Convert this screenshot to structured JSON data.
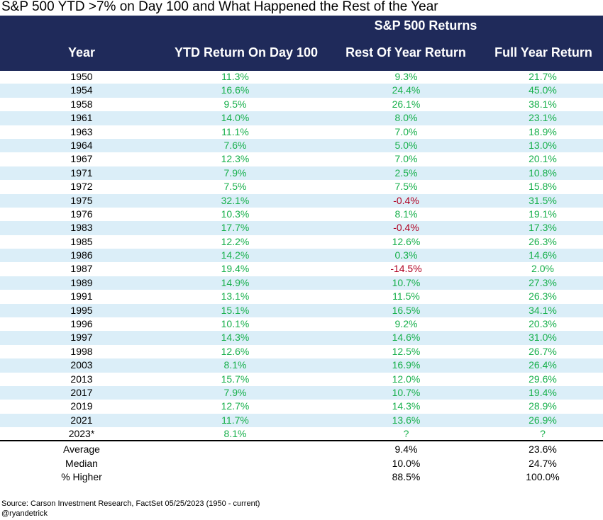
{
  "title": "S&P 500 YTD >7% on Day 100 and What Happened the Rest of the Year",
  "group_header": "S&P 500 Returns",
  "columns": [
    "Year",
    "YTD Return On Day 100",
    "Rest Of Year Return",
    "Full Year Return"
  ],
  "colors": {
    "header_bg": "#1f2a5a",
    "positive": "#18b04c",
    "negative": "#b00020",
    "alt_row": "#dbeef8"
  },
  "chart_data": {
    "type": "table",
    "title": "S&P 500 YTD >7% on Day 100 and What Happened the Rest of the Year",
    "columns": [
      "Year",
      "YTD Return On Day 100",
      "Rest Of Year Return",
      "Full Year Return"
    ],
    "rows": [
      [
        "1950",
        "11.3%",
        "9.3%",
        "21.7%"
      ],
      [
        "1954",
        "16.6%",
        "24.4%",
        "45.0%"
      ],
      [
        "1958",
        "9.5%",
        "26.1%",
        "38.1%"
      ],
      [
        "1961",
        "14.0%",
        "8.0%",
        "23.1%"
      ],
      [
        "1963",
        "11.1%",
        "7.0%",
        "18.9%"
      ],
      [
        "1964",
        "7.6%",
        "5.0%",
        "13.0%"
      ],
      [
        "1967",
        "12.3%",
        "7.0%",
        "20.1%"
      ],
      [
        "1971",
        "7.9%",
        "2.5%",
        "10.8%"
      ],
      [
        "1972",
        "7.5%",
        "7.5%",
        "15.8%"
      ],
      [
        "1975",
        "32.1%",
        "-0.4%",
        "31.5%"
      ],
      [
        "1976",
        "10.3%",
        "8.1%",
        "19.1%"
      ],
      [
        "1983",
        "17.7%",
        "-0.4%",
        "17.3%"
      ],
      [
        "1985",
        "12.2%",
        "12.6%",
        "26.3%"
      ],
      [
        "1986",
        "14.2%",
        "0.3%",
        "14.6%"
      ],
      [
        "1987",
        "19.4%",
        "-14.5%",
        "2.0%"
      ],
      [
        "1989",
        "14.9%",
        "10.7%",
        "27.3%"
      ],
      [
        "1991",
        "13.1%",
        "11.5%",
        "26.3%"
      ],
      [
        "1995",
        "15.1%",
        "16.5%",
        "34.1%"
      ],
      [
        "1996",
        "10.1%",
        "9.2%",
        "20.3%"
      ],
      [
        "1997",
        "14.3%",
        "14.6%",
        "31.0%"
      ],
      [
        "1998",
        "12.6%",
        "12.5%",
        "26.7%"
      ],
      [
        "2003",
        "8.1%",
        "16.9%",
        "26.4%"
      ],
      [
        "2013",
        "15.7%",
        "12.0%",
        "29.6%"
      ],
      [
        "2017",
        "7.9%",
        "10.7%",
        "19.4%"
      ],
      [
        "2019",
        "12.7%",
        "14.3%",
        "28.9%"
      ],
      [
        "2021",
        "11.7%",
        "13.6%",
        "26.9%"
      ],
      [
        "2023*",
        "8.1%",
        "?",
        "?"
      ]
    ],
    "summary": [
      [
        "Average",
        "",
        "9.4%",
        "23.6%"
      ],
      [
        "Median",
        "",
        "10.0%",
        "24.7%"
      ],
      [
        "% Higher",
        "",
        "88.5%",
        "100.0%"
      ]
    ]
  },
  "footer": {
    "source": "Source: Carson Investment Research, FactSet 05/25/2023    (1950 - current)",
    "handle": "@ryandetrick"
  }
}
